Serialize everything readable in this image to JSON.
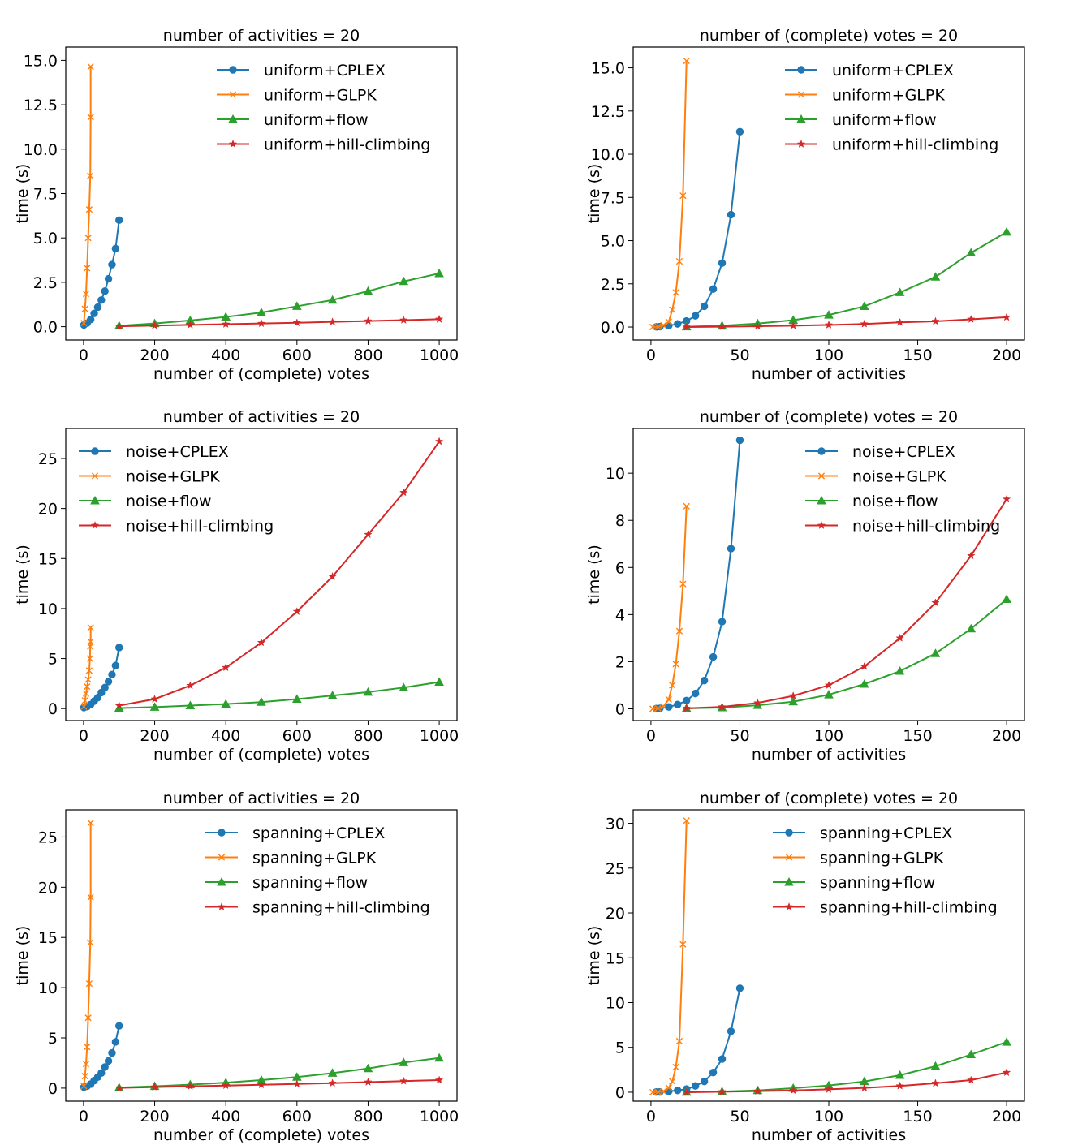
{
  "colors": {
    "cplex": "#1f77b4",
    "glpk": "#ff7f0e",
    "flow": "#2ca02c",
    "hill": "#d62728"
  },
  "chart_data": [
    {
      "type": "line",
      "title": "number of activities = 20",
      "xlabel": "number of (complete) votes",
      "ylabel": "time (s)",
      "xlim": [
        -50,
        1050
      ],
      "ylim": [
        -0.75,
        15.75
      ],
      "xticks": [
        0,
        200,
        400,
        600,
        800,
        1000
      ],
      "yticks": [
        0,
        2.5,
        5,
        7.5,
        10,
        12.5,
        15
      ],
      "ytick_labels": [
        "0.0",
        "2.5",
        "5.0",
        "7.5",
        "10.0",
        "12.5",
        "15.0"
      ],
      "legend_loc": "upper-right",
      "series": [
        {
          "name": "uniform+CPLEX",
          "key": "cplex",
          "marker": "circle",
          "x": [
            1,
            10,
            20,
            30,
            40,
            50,
            60,
            70,
            80,
            90,
            100
          ],
          "y": [
            0.1,
            0.2,
            0.4,
            0.75,
            1.1,
            1.5,
            2.0,
            2.7,
            3.5,
            4.4,
            6.0
          ]
        },
        {
          "name": "uniform+GLPK",
          "key": "glpk",
          "marker": "x",
          "x": [
            1,
            4,
            7,
            10,
            13,
            16,
            19,
            20,
            20
          ],
          "y": [
            0.2,
            1.0,
            1.85,
            3.3,
            5.0,
            6.6,
            8.5,
            11.8,
            14.65
          ]
        },
        {
          "name": "uniform+flow",
          "key": "flow",
          "marker": "triangle",
          "x": [
            100,
            200,
            300,
            400,
            500,
            600,
            700,
            800,
            900,
            1000
          ],
          "y": [
            0.05,
            0.18,
            0.35,
            0.55,
            0.8,
            1.15,
            1.5,
            2.0,
            2.55,
            3.0
          ]
        },
        {
          "name": "uniform+hill-climbing",
          "key": "hill",
          "marker": "star",
          "x": [
            100,
            200,
            300,
            400,
            500,
            600,
            700,
            800,
            900,
            1000
          ],
          "y": [
            0.02,
            0.06,
            0.1,
            0.14,
            0.18,
            0.22,
            0.27,
            0.32,
            0.37,
            0.42
          ]
        }
      ]
    },
    {
      "type": "line",
      "title": "number of (complete) votes = 20",
      "xlabel": "number of activities",
      "ylabel": "time (s)",
      "xlim": [
        -10,
        210
      ],
      "ylim": [
        -0.75,
        16.2
      ],
      "xticks": [
        0,
        50,
        100,
        150,
        200
      ],
      "yticks": [
        0,
        2.5,
        5,
        7.5,
        10,
        12.5,
        15
      ],
      "ytick_labels": [
        "0.0",
        "2.5",
        "5.0",
        "7.5",
        "10.0",
        "12.5",
        "15.0"
      ],
      "legend_loc": "upper-right",
      "series": [
        {
          "name": "uniform+CPLEX",
          "key": "cplex",
          "marker": "circle",
          "x": [
            3,
            5,
            10,
            15,
            20,
            25,
            30,
            35,
            40,
            45,
            50
          ],
          "y": [
            0.01,
            0.02,
            0.08,
            0.18,
            0.35,
            0.65,
            1.2,
            2.2,
            3.7,
            6.5,
            11.3
          ]
        },
        {
          "name": "uniform+GLPK",
          "key": "glpk",
          "marker": "x",
          "x": [
            1,
            4,
            7,
            10,
            12,
            14,
            16,
            18,
            20
          ],
          "y": [
            0.0,
            0.02,
            0.1,
            0.3,
            1.0,
            2.0,
            3.8,
            7.6,
            15.4
          ]
        },
        {
          "name": "uniform+flow",
          "key": "flow",
          "marker": "triangle",
          "x": [
            20,
            40,
            60,
            80,
            100,
            120,
            140,
            160,
            180,
            200
          ],
          "y": [
            0.02,
            0.08,
            0.2,
            0.4,
            0.7,
            1.2,
            2.0,
            2.9,
            4.3,
            5.5
          ]
        },
        {
          "name": "uniform+hill-climbing",
          "key": "hill",
          "marker": "star",
          "x": [
            20,
            40,
            60,
            80,
            100,
            120,
            140,
            160,
            180,
            200
          ],
          "y": [
            0.0,
            0.02,
            0.05,
            0.08,
            0.12,
            0.18,
            0.27,
            0.33,
            0.45,
            0.57
          ]
        }
      ]
    },
    {
      "type": "line",
      "title": "number of activities = 20",
      "xlabel": "number of (complete) votes",
      "ylabel": "time (s)",
      "xlim": [
        -50,
        1050
      ],
      "ylim": [
        -1.2,
        28
      ],
      "xticks": [
        0,
        200,
        400,
        600,
        800,
        1000
      ],
      "yticks": [
        0,
        5,
        10,
        15,
        20,
        25
      ],
      "ytick_labels": [
        "0",
        "5",
        "10",
        "15",
        "20",
        "25"
      ],
      "legend_loc": "upper-left",
      "series": [
        {
          "name": "noise+CPLEX",
          "key": "cplex",
          "marker": "circle",
          "x": [
            1,
            10,
            20,
            30,
            40,
            50,
            60,
            70,
            80,
            90,
            100
          ],
          "y": [
            0.1,
            0.2,
            0.4,
            0.75,
            1.1,
            1.6,
            2.1,
            2.7,
            3.4,
            4.3,
            6.1
          ]
        },
        {
          "name": "noise+GLPK",
          "key": "glpk",
          "marker": "x",
          "x": [
            1,
            4,
            7,
            10,
            13,
            16,
            18,
            19,
            20,
            20
          ],
          "y": [
            0.2,
            0.8,
            1.5,
            2.2,
            2.9,
            3.8,
            5.0,
            6.2,
            6.7,
            8.1
          ]
        },
        {
          "name": "noise+flow",
          "key": "flow",
          "marker": "triangle",
          "x": [
            100,
            200,
            300,
            400,
            500,
            600,
            700,
            800,
            900,
            1000
          ],
          "y": [
            0.05,
            0.15,
            0.3,
            0.45,
            0.65,
            0.95,
            1.3,
            1.65,
            2.1,
            2.65
          ]
        },
        {
          "name": "noise+hill-climbing",
          "key": "hill",
          "marker": "star",
          "x": [
            100,
            200,
            300,
            400,
            500,
            600,
            700,
            800,
            900,
            1000
          ],
          "y": [
            0.3,
            0.95,
            2.3,
            4.1,
            6.6,
            9.7,
            13.2,
            17.4,
            21.6,
            26.7
          ]
        }
      ]
    },
    {
      "type": "line",
      "title": "number of (complete) votes = 20",
      "xlabel": "number of activities",
      "ylabel": "time (s)",
      "xlim": [
        -10,
        210
      ],
      "ylim": [
        -0.5,
        11.9
      ],
      "xticks": [
        0,
        50,
        100,
        150,
        200
      ],
      "yticks": [
        0,
        2,
        4,
        6,
        8,
        10
      ],
      "ytick_labels": [
        "0",
        "2",
        "4",
        "6",
        "8",
        "10"
      ],
      "legend_loc": "upper-right",
      "series": [
        {
          "name": "noise+CPLEX",
          "key": "cplex",
          "marker": "circle",
          "x": [
            3,
            5,
            10,
            15,
            20,
            25,
            30,
            35,
            40,
            45,
            50
          ],
          "y": [
            0.01,
            0.02,
            0.08,
            0.18,
            0.35,
            0.65,
            1.2,
            2.2,
            3.7,
            6.8,
            11.4
          ]
        },
        {
          "name": "noise+GLPK",
          "key": "glpk",
          "marker": "x",
          "x": [
            1,
            4,
            7,
            10,
            12,
            14,
            16,
            18,
            20
          ],
          "y": [
            0.0,
            0.02,
            0.1,
            0.4,
            1.0,
            1.9,
            3.3,
            5.3,
            8.6
          ]
        },
        {
          "name": "noise+flow",
          "key": "flow",
          "marker": "triangle",
          "x": [
            20,
            40,
            60,
            80,
            100,
            120,
            140,
            160,
            180,
            200
          ],
          "y": [
            0.02,
            0.05,
            0.15,
            0.3,
            0.6,
            1.05,
            1.6,
            2.35,
            3.4,
            4.65
          ]
        },
        {
          "name": "noise+hill-climbing",
          "key": "hill",
          "marker": "star",
          "x": [
            20,
            40,
            60,
            80,
            100,
            120,
            140,
            160,
            180,
            200
          ],
          "y": [
            0.02,
            0.08,
            0.25,
            0.55,
            1.0,
            1.8,
            3.0,
            4.5,
            6.5,
            8.9
          ]
        }
      ]
    },
    {
      "type": "line",
      "title": "number of activities = 20",
      "xlabel": "number of (complete) votes",
      "ylabel": "time (s)",
      "xlim": [
        -50,
        1050
      ],
      "ylim": [
        -1.3,
        27.7
      ],
      "xticks": [
        0,
        200,
        400,
        600,
        800,
        1000
      ],
      "yticks": [
        0,
        5,
        10,
        15,
        20,
        25
      ],
      "ytick_labels": [
        "0",
        "5",
        "10",
        "15",
        "20",
        "25"
      ],
      "legend_loc": "upper-right",
      "series": [
        {
          "name": "spanning+CPLEX",
          "key": "cplex",
          "marker": "circle",
          "x": [
            1,
            10,
            20,
            30,
            40,
            50,
            60,
            70,
            80,
            90,
            100
          ],
          "y": [
            0.1,
            0.2,
            0.4,
            0.75,
            1.1,
            1.5,
            2.1,
            2.7,
            3.5,
            4.6,
            6.2
          ]
        },
        {
          "name": "spanning+GLPK",
          "key": "glpk",
          "marker": "x",
          "x": [
            1,
            4,
            7,
            10,
            13,
            16,
            19,
            20,
            20
          ],
          "y": [
            0.2,
            1.2,
            2.4,
            4.1,
            7.0,
            10.4,
            14.5,
            19.0,
            26.4
          ]
        },
        {
          "name": "spanning+flow",
          "key": "flow",
          "marker": "triangle",
          "x": [
            100,
            200,
            300,
            400,
            500,
            600,
            700,
            800,
            900,
            1000
          ],
          "y": [
            0.05,
            0.18,
            0.35,
            0.55,
            0.8,
            1.1,
            1.5,
            1.95,
            2.55,
            3.0
          ]
        },
        {
          "name": "spanning+hill-climbing",
          "key": "hill",
          "marker": "star",
          "x": [
            100,
            200,
            300,
            400,
            500,
            600,
            700,
            800,
            900,
            1000
          ],
          "y": [
            0.02,
            0.1,
            0.18,
            0.26,
            0.34,
            0.42,
            0.5,
            0.6,
            0.7,
            0.8
          ]
        }
      ]
    },
    {
      "type": "line",
      "title": "number of (complete) votes = 20",
      "xlabel": "number of activities",
      "ylabel": "time (s)",
      "xlim": [
        -10,
        210
      ],
      "ylim": [
        -1.0,
        31.5
      ],
      "xticks": [
        0,
        50,
        100,
        150,
        200
      ],
      "yticks": [
        0,
        5,
        10,
        15,
        20,
        25,
        30
      ],
      "ytick_labels": [
        "0",
        "5",
        "10",
        "15",
        "20",
        "25",
        "30"
      ],
      "legend_loc": "upper-right",
      "series": [
        {
          "name": "spanning+CPLEX",
          "key": "cplex",
          "marker": "circle",
          "x": [
            3,
            5,
            10,
            15,
            20,
            25,
            30,
            35,
            40,
            45,
            50
          ],
          "y": [
            0.02,
            0.03,
            0.1,
            0.2,
            0.35,
            0.7,
            1.2,
            2.2,
            3.7,
            6.8,
            11.6
          ]
        },
        {
          "name": "spanning+GLPK",
          "key": "glpk",
          "marker": "x",
          "x": [
            1,
            4,
            7,
            10,
            12,
            14,
            16,
            18,
            20
          ],
          "y": [
            0.0,
            0.02,
            0.1,
            0.5,
            1.2,
            2.8,
            5.7,
            16.5,
            30.3
          ]
        },
        {
          "name": "spanning+flow",
          "key": "flow",
          "marker": "triangle",
          "x": [
            20,
            40,
            60,
            80,
            100,
            120,
            140,
            160,
            180,
            200
          ],
          "y": [
            0.02,
            0.08,
            0.2,
            0.45,
            0.75,
            1.2,
            1.9,
            2.9,
            4.2,
            5.6
          ]
        },
        {
          "name": "spanning+hill-climbing",
          "key": "hill",
          "marker": "star",
          "x": [
            20,
            40,
            60,
            80,
            100,
            120,
            140,
            160,
            180,
            200
          ],
          "y": [
            0.0,
            0.05,
            0.12,
            0.2,
            0.32,
            0.48,
            0.7,
            1.0,
            1.35,
            2.2
          ]
        }
      ]
    }
  ]
}
